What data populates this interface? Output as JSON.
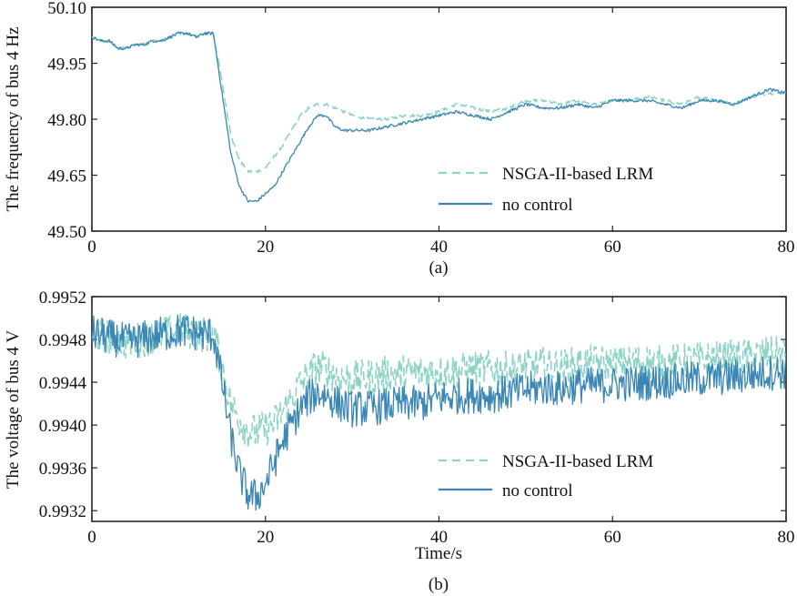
{
  "colors": {
    "lrm": "#8ed3c7",
    "no_control": "#3a86b4",
    "axis": "#222222"
  },
  "chart_data": [
    {
      "type": "line",
      "caption": "(a)",
      "ylabel": "The frequency of bus 4 Hz",
      "xlabel": "",
      "xlim": [
        0,
        80
      ],
      "ylim": [
        49.5,
        50.1
      ],
      "xticks": [
        "0",
        "20",
        "40",
        "60",
        "80"
      ],
      "yticks": [
        "49.50",
        "49.65",
        "49.80",
        "49.95",
        "50.10"
      ],
      "legend_position": "bottom-right",
      "noise": 0.004,
      "series": [
        {
          "name": "NSGA-II-based LRM",
          "style": "dashed",
          "x": [
            0,
            1,
            2,
            3,
            4,
            5,
            6,
            7,
            8,
            9,
            10,
            11,
            12,
            13,
            14,
            15,
            16,
            17,
            18,
            19,
            20,
            21,
            22,
            23,
            24,
            25,
            26,
            27,
            28,
            29,
            30,
            32,
            34,
            36,
            38,
            40,
            42,
            44,
            46,
            48,
            50,
            52,
            54,
            56,
            58,
            60,
            62,
            64,
            66,
            68,
            70,
            72,
            74,
            76,
            78,
            80
          ],
          "y": [
            50.02,
            50.01,
            50.01,
            49.99,
            49.99,
            50.0,
            50.0,
            50.01,
            50.01,
            50.02,
            50.03,
            50.03,
            50.02,
            50.03,
            50.03,
            49.9,
            49.76,
            49.69,
            49.66,
            49.66,
            49.67,
            49.7,
            49.73,
            49.77,
            49.81,
            49.83,
            49.84,
            49.84,
            49.83,
            49.82,
            49.81,
            49.8,
            49.8,
            49.81,
            49.81,
            49.82,
            49.84,
            49.83,
            49.82,
            49.83,
            49.85,
            49.85,
            49.84,
            49.85,
            49.84,
            49.85,
            49.85,
            49.86,
            49.85,
            49.84,
            49.86,
            49.85,
            49.84,
            49.86,
            49.87,
            49.87
          ]
        },
        {
          "name": "no control",
          "style": "solid",
          "x": [
            0,
            1,
            2,
            3,
            4,
            5,
            6,
            7,
            8,
            9,
            10,
            11,
            12,
            13,
            14,
            15,
            16,
            17,
            18,
            19,
            20,
            21,
            22,
            23,
            24,
            25,
            26,
            27,
            28,
            29,
            30,
            32,
            34,
            36,
            38,
            40,
            42,
            44,
            46,
            48,
            50,
            52,
            54,
            56,
            58,
            60,
            62,
            64,
            66,
            68,
            70,
            72,
            74,
            76,
            78,
            80
          ],
          "y": [
            50.02,
            50.01,
            50.01,
            49.99,
            49.99,
            50.0,
            50.0,
            50.01,
            50.01,
            50.02,
            50.03,
            50.03,
            50.02,
            50.03,
            50.03,
            49.87,
            49.71,
            49.62,
            49.58,
            49.58,
            49.6,
            49.62,
            49.66,
            49.7,
            49.74,
            49.78,
            49.81,
            49.81,
            49.78,
            49.77,
            49.77,
            49.77,
            49.78,
            49.79,
            49.8,
            49.81,
            49.82,
            49.81,
            49.8,
            49.82,
            49.84,
            49.83,
            49.83,
            49.84,
            49.83,
            49.85,
            49.85,
            49.85,
            49.84,
            49.83,
            49.85,
            49.85,
            49.84,
            49.86,
            49.88,
            49.87
          ]
        }
      ]
    },
    {
      "type": "line",
      "caption": "(b)",
      "ylabel": "The voltage of bus 4 V",
      "xlabel": "Time/s",
      "xlim": [
        0,
        80
      ],
      "ylim": [
        0.9931,
        0.9952
      ],
      "xticks": [
        "0",
        "20",
        "40",
        "60",
        "80"
      ],
      "yticks": [
        "0.9932",
        "0.9936",
        "0.9940",
        "0.9944",
        "0.9948",
        "0.9952"
      ],
      "legend_position": "bottom-right",
      "noise": 0.00017,
      "series": [
        {
          "name": "NSGA-II-based LRM",
          "style": "dashed",
          "x": [
            0,
            1,
            2,
            3,
            4,
            5,
            6,
            7,
            8,
            9,
            10,
            11,
            12,
            13,
            14,
            15,
            16,
            17,
            18,
            19,
            20,
            21,
            22,
            23,
            24,
            25,
            26,
            27,
            28,
            29,
            30,
            32,
            34,
            36,
            38,
            40,
            42,
            44,
            46,
            48,
            50,
            52,
            54,
            56,
            58,
            60,
            62,
            64,
            66,
            68,
            70,
            72,
            74,
            76,
            78,
            80
          ],
          "y": [
            0.99486,
            0.99484,
            0.99482,
            0.9948,
            0.99478,
            0.99479,
            0.99481,
            0.99483,
            0.99485,
            0.99486,
            0.99488,
            0.99488,
            0.99486,
            0.99485,
            0.99485,
            0.99455,
            0.9942,
            0.99405,
            0.99395,
            0.99393,
            0.99397,
            0.99402,
            0.99412,
            0.99425,
            0.99438,
            0.99448,
            0.99455,
            0.99452,
            0.99447,
            0.99444,
            0.99443,
            0.99445,
            0.99448,
            0.99449,
            0.99449,
            0.9945,
            0.99451,
            0.99452,
            0.99453,
            0.99452,
            0.99455,
            0.99456,
            0.99454,
            0.99457,
            0.99458,
            0.99457,
            0.99458,
            0.99459,
            0.99458,
            0.9946,
            0.99461,
            0.99462,
            0.99463,
            0.99465,
            0.99466,
            0.99466
          ]
        },
        {
          "name": "no control",
          "style": "solid",
          "x": [
            0,
            1,
            2,
            3,
            4,
            5,
            6,
            7,
            8,
            9,
            10,
            11,
            12,
            13,
            14,
            15,
            16,
            17,
            18,
            19,
            20,
            21,
            22,
            23,
            24,
            25,
            26,
            27,
            28,
            29,
            30,
            32,
            34,
            36,
            38,
            40,
            42,
            44,
            46,
            48,
            50,
            52,
            54,
            56,
            58,
            60,
            62,
            64,
            66,
            68,
            70,
            72,
            74,
            76,
            78,
            80
          ],
          "y": [
            0.99486,
            0.99484,
            0.99482,
            0.9948,
            0.99478,
            0.99479,
            0.99481,
            0.99483,
            0.99485,
            0.99486,
            0.99488,
            0.99488,
            0.99486,
            0.99485,
            0.99485,
            0.9944,
            0.9939,
            0.99355,
            0.99335,
            0.99333,
            0.99345,
            0.99365,
            0.99385,
            0.994,
            0.99415,
            0.99425,
            0.9943,
            0.99428,
            0.99422,
            0.99418,
            0.99415,
            0.99416,
            0.99418,
            0.9942,
            0.9942,
            0.99425,
            0.99427,
            0.99428,
            0.99428,
            0.9943,
            0.99433,
            0.99435,
            0.99434,
            0.99437,
            0.99437,
            0.99438,
            0.99439,
            0.9944,
            0.99441,
            0.99442,
            0.99443,
            0.99444,
            0.99445,
            0.99447,
            0.99449,
            0.9945
          ]
        }
      ]
    }
  ]
}
